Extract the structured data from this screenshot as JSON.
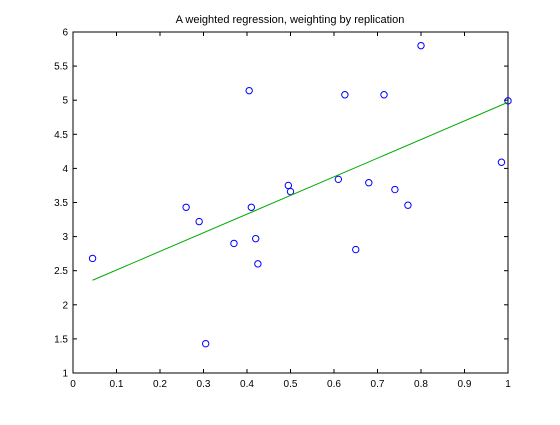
{
  "chart_data": {
    "type": "scatter",
    "title": "A weighted regression, weighting by replication",
    "xlabel": "",
    "ylabel": "",
    "xlim": [
      0,
      1
    ],
    "ylim": [
      1,
      6
    ],
    "xticks": [
      0,
      0.1,
      0.2,
      0.3,
      0.4,
      0.5,
      0.6,
      0.7,
      0.8,
      0.9,
      1
    ],
    "yticks": [
      1,
      1.5,
      2,
      2.5,
      3,
      3.5,
      4,
      4.5,
      5,
      5.5,
      6
    ],
    "xtick_labels": [
      "0",
      "0.1",
      "0.2",
      "0.3",
      "0.4",
      "0.5",
      "0.6",
      "0.7",
      "0.8",
      "0.9",
      "1"
    ],
    "ytick_labels": [
      "1",
      "1.5",
      "2",
      "2.5",
      "3",
      "3.5",
      "4",
      "4.5",
      "5",
      "5.5",
      "6"
    ],
    "grid": false,
    "series": [
      {
        "kind": "scatter",
        "marker": "circle-open",
        "color": "#0000ff",
        "x": [
          0.045,
          0.26,
          0.29,
          0.305,
          0.37,
          0.405,
          0.41,
          0.42,
          0.425,
          0.495,
          0.5,
          0.61,
          0.625,
          0.65,
          0.68,
          0.715,
          0.74,
          0.77,
          0.8,
          0.985,
          1.0
        ],
        "y": [
          2.68,
          3.43,
          3.22,
          1.43,
          2.9,
          5.14,
          3.43,
          2.97,
          2.6,
          3.75,
          3.66,
          3.84,
          5.08,
          2.81,
          3.79,
          5.08,
          3.69,
          3.46,
          5.8,
          4.09,
          4.99
        ]
      },
      {
        "kind": "line",
        "color": "#00aa00",
        "x": [
          0.045,
          1.0
        ],
        "y": [
          2.36,
          4.97
        ]
      }
    ]
  }
}
